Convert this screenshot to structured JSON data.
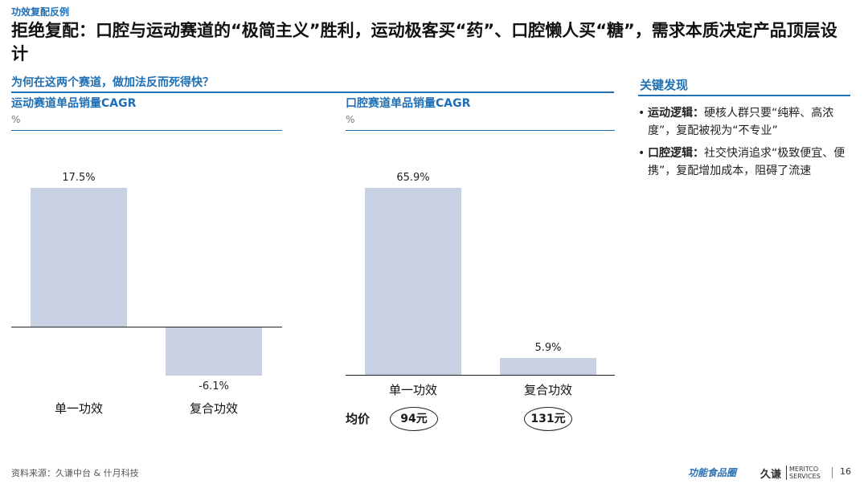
{
  "header": {
    "breadcrumb": "功效复配反例",
    "title": "拒绝复配：口腔与运动赛道的“极简主义”胜利，运动极客买“药”、口腔懒人买“糖”，需求本质决定产品顶层设计"
  },
  "section": {
    "question": "为何在这两个赛道，做加法反而死得快？"
  },
  "chart_data": [
    {
      "type": "bar",
      "title": "运动赛道单品销量CAGR",
      "ylabel": "%",
      "categories": [
        "单一功效",
        "复合功效"
      ],
      "values": [
        17.5,
        -6.1
      ],
      "value_labels": [
        "17.5%",
        "-6.1%"
      ],
      "ylim": [
        -6.1,
        17.5
      ],
      "grid": false
    },
    {
      "type": "bar",
      "title": "口腔赛道单品销量CAGR",
      "ylabel": "%",
      "categories": [
        "单一功效",
        "复合功效"
      ],
      "values": [
        65.9,
        5.9
      ],
      "value_labels": [
        "65.9%",
        "5.9%"
      ],
      "ylim": [
        0,
        65.9
      ],
      "grid": false,
      "price_label": "均价",
      "prices": [
        "94元",
        "131元"
      ]
    }
  ],
  "findings": {
    "title": "关键发现",
    "items": [
      {
        "bullet": "•",
        "label": "运动逻辑：",
        "text": "硬核人群只要“纯粹、高浓度”，复配被视为“不专业”"
      },
      {
        "bullet": "•",
        "label": "口腔逻辑：",
        "text": "社交快消追求“极致便宜、便携”，复配增加成本，阻碍了流速"
      }
    ]
  },
  "footer": {
    "source": "资料来源：久谦中台 & 什月科技",
    "logo_text": "功能食品圈",
    "brand_cn": "久谦",
    "brand_en_1": "MERITCO",
    "brand_en_2": "SERVICES",
    "page": "16"
  },
  "colors": {
    "accent": "#1f6fb5",
    "bar": "#c7d1e1",
    "axis": "#222222"
  }
}
